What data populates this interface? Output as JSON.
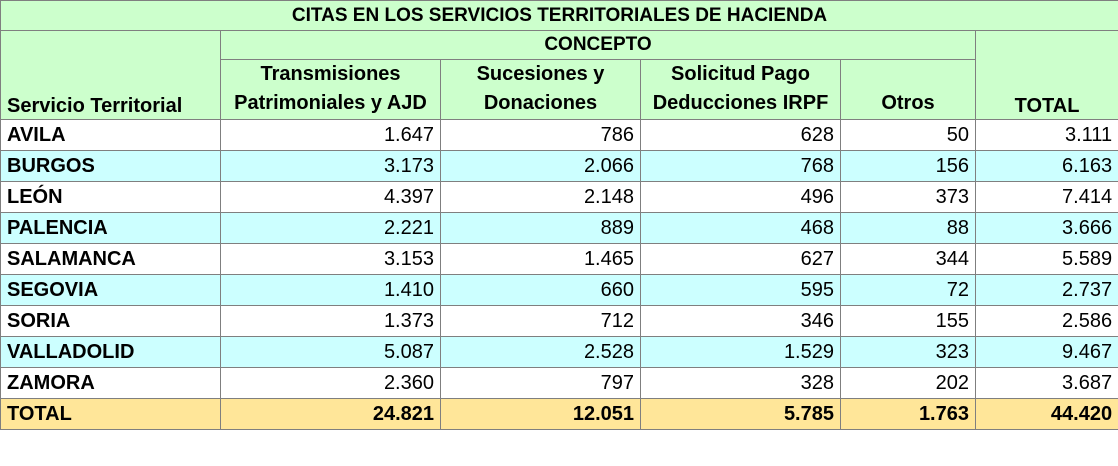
{
  "title": "CITAS EN LOS SERVICIOS TERRITORIALES DE HACIENDA",
  "concept_label": "CONCEPTO",
  "headers": {
    "servicio": "Servicio Territorial",
    "transmisiones": "Transmisiones Patrimoniales y AJD",
    "sucesiones": "Sucesiones y Donaciones",
    "solicitud": "Solicitud Pago Deducciones IRPF",
    "otros": "Otros",
    "total": "TOTAL"
  },
  "rows": [
    {
      "name": "AVILA",
      "transmisiones": "1.647",
      "sucesiones": "786",
      "solicitud": "628",
      "otros": "50",
      "total": "3.111"
    },
    {
      "name": "BURGOS",
      "transmisiones": "3.173",
      "sucesiones": "2.066",
      "solicitud": "768",
      "otros": "156",
      "total": "6.163"
    },
    {
      "name": "LEÓN",
      "transmisiones": "4.397",
      "sucesiones": "2.148",
      "solicitud": "496",
      "otros": "373",
      "total": "7.414"
    },
    {
      "name": "PALENCIA",
      "transmisiones": "2.221",
      "sucesiones": "889",
      "solicitud": "468",
      "otros": "88",
      "total": "3.666"
    },
    {
      "name": "SALAMANCA",
      "transmisiones": "3.153",
      "sucesiones": "1.465",
      "solicitud": "627",
      "otros": "344",
      "total": "5.589"
    },
    {
      "name": "SEGOVIA",
      "transmisiones": "1.410",
      "sucesiones": "660",
      "solicitud": "595",
      "otros": "72",
      "total": "2.737"
    },
    {
      "name": "SORIA",
      "transmisiones": "1.373",
      "sucesiones": "712",
      "solicitud": "346",
      "otros": "155",
      "total": "2.586"
    },
    {
      "name": "VALLADOLID",
      "transmisiones": "5.087",
      "sucesiones": "2.528",
      "solicitud": "1.529",
      "otros": "323",
      "total": "9.467"
    },
    {
      "name": "ZAMORA",
      "transmisiones": "2.360",
      "sucesiones": "797",
      "solicitud": "328",
      "otros": "202",
      "total": "3.687"
    }
  ],
  "totals": {
    "name": "TOTAL",
    "transmisiones": "24.821",
    "sucesiones": "12.051",
    "solicitud": "5.785",
    "otros": "1.763",
    "total": "44.420"
  },
  "colors": {
    "header_bg": "#ccffcc",
    "alt_row_bg": "#ccffff",
    "total_row_bg": "#ffe699"
  }
}
